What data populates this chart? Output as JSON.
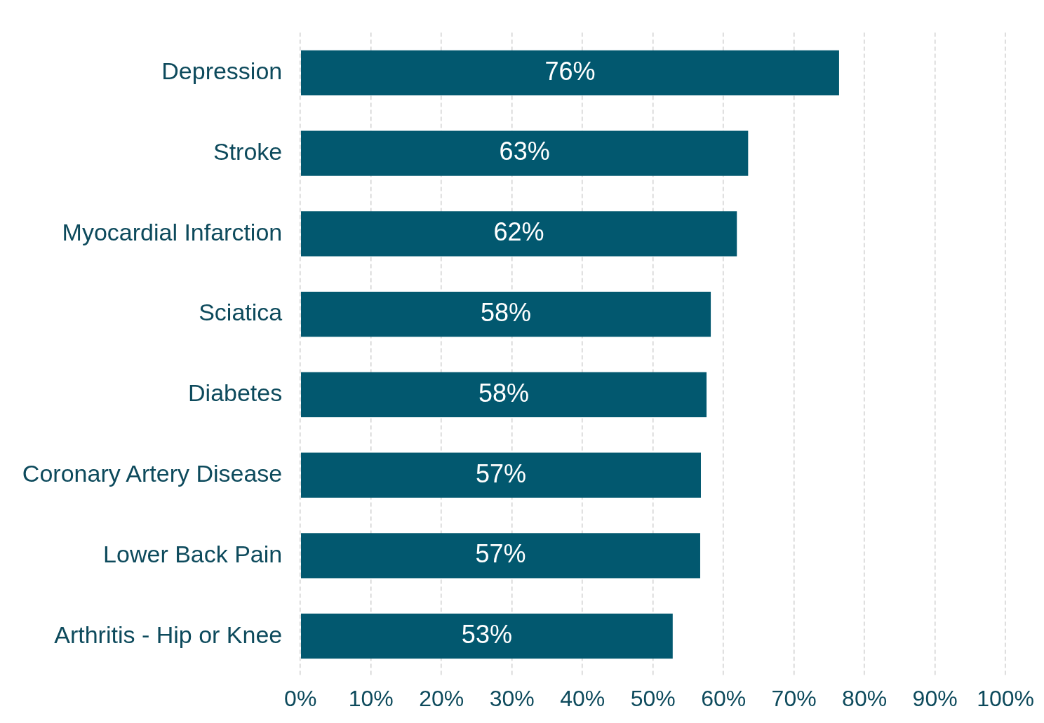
{
  "chart_data": {
    "type": "bar",
    "orientation": "horizontal",
    "categories": [
      "Depression",
      "Stroke",
      "Myocardial Infarction",
      "Sciatica",
      "Diabetes",
      "Coronary Artery Disease",
      "Lower Back Pain",
      "Arthritis - Hip or Knee"
    ],
    "values": [
      76.4,
      63.5,
      61.9,
      58.2,
      57.6,
      56.8,
      56.7,
      52.8
    ],
    "color": "#02586f",
    "value_labels": [
      "76%",
      "63%",
      "62%",
      "58%",
      "58%",
      "57%",
      "57%",
      "53%"
    ],
    "xlim": [
      0,
      100
    ],
    "xticks": [
      {
        "value": 0,
        "label": "0%"
      },
      {
        "value": 10,
        "label": "10%"
      },
      {
        "value": 20,
        "label": "20%"
      },
      {
        "value": 30,
        "label": "30%"
      },
      {
        "value": 40,
        "label": "40%"
      },
      {
        "value": 50,
        "label": "50%"
      },
      {
        "value": 60,
        "label": "60%"
      },
      {
        "value": 70,
        "label": "70%"
      },
      {
        "value": 80,
        "label": "80%"
      },
      {
        "value": 90,
        "label": "90%"
      },
      {
        "value": 100,
        "label": "100%"
      }
    ],
    "grid": "x"
  }
}
